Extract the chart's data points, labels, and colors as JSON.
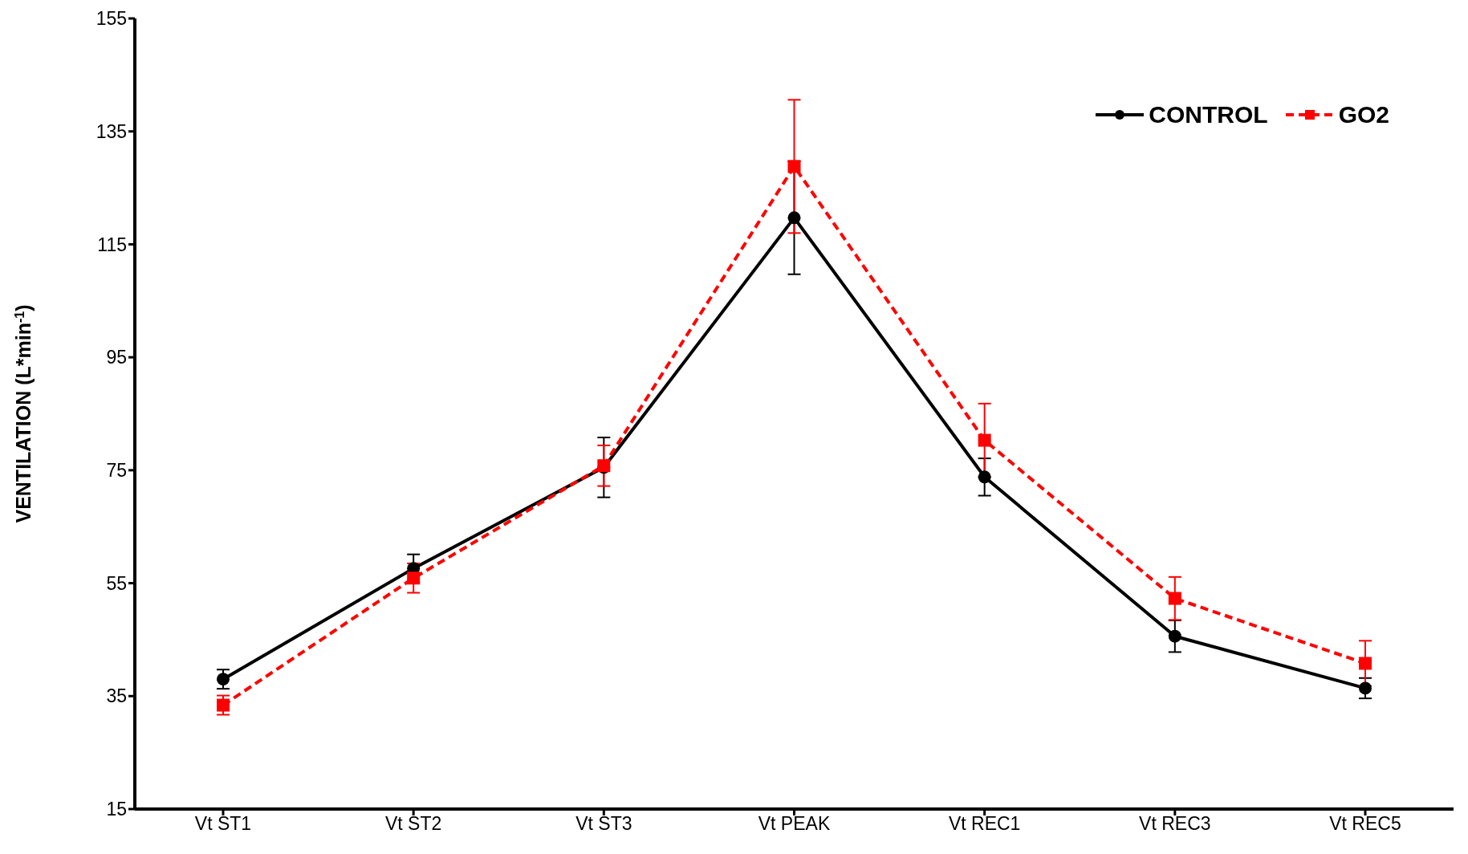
{
  "chart_data": {
    "type": "line",
    "ylabel": "VENTILATION (L*min$^{-1}$)",
    "categories": [
      "Vt ST1",
      "Vt ST2",
      "Vt ST3",
      "Vt PEAK",
      "Vt REC1",
      "Vt REC3",
      "Vt REC5"
    ],
    "ylim": [
      15,
      155
    ],
    "yticks": [
      15,
      35,
      55,
      75,
      95,
      115,
      135,
      155
    ],
    "grid": false,
    "legend": "top right",
    "series": [
      {
        "name": "CONTROL",
        "color": "#000000",
        "marker": "circle",
        "line_style": "solid",
        "values": [
          38,
          57.6,
          75.5,
          119.7,
          73.8,
          45.6,
          36.4
        ],
        "errors": [
          1.7,
          2.5,
          5.3,
          10,
          3.3,
          2.8,
          1.8
        ]
      },
      {
        "name": "GO2",
        "color": "#ff0000",
        "marker": "square",
        "line_style": "dashed",
        "values": [
          33.4,
          55.9,
          75.8,
          128.8,
          80.3,
          52.3,
          40.8
        ],
        "errors": [
          1.7,
          2.6,
          3.6,
          11.8,
          6.5,
          3.8,
          4
        ]
      }
    ]
  }
}
